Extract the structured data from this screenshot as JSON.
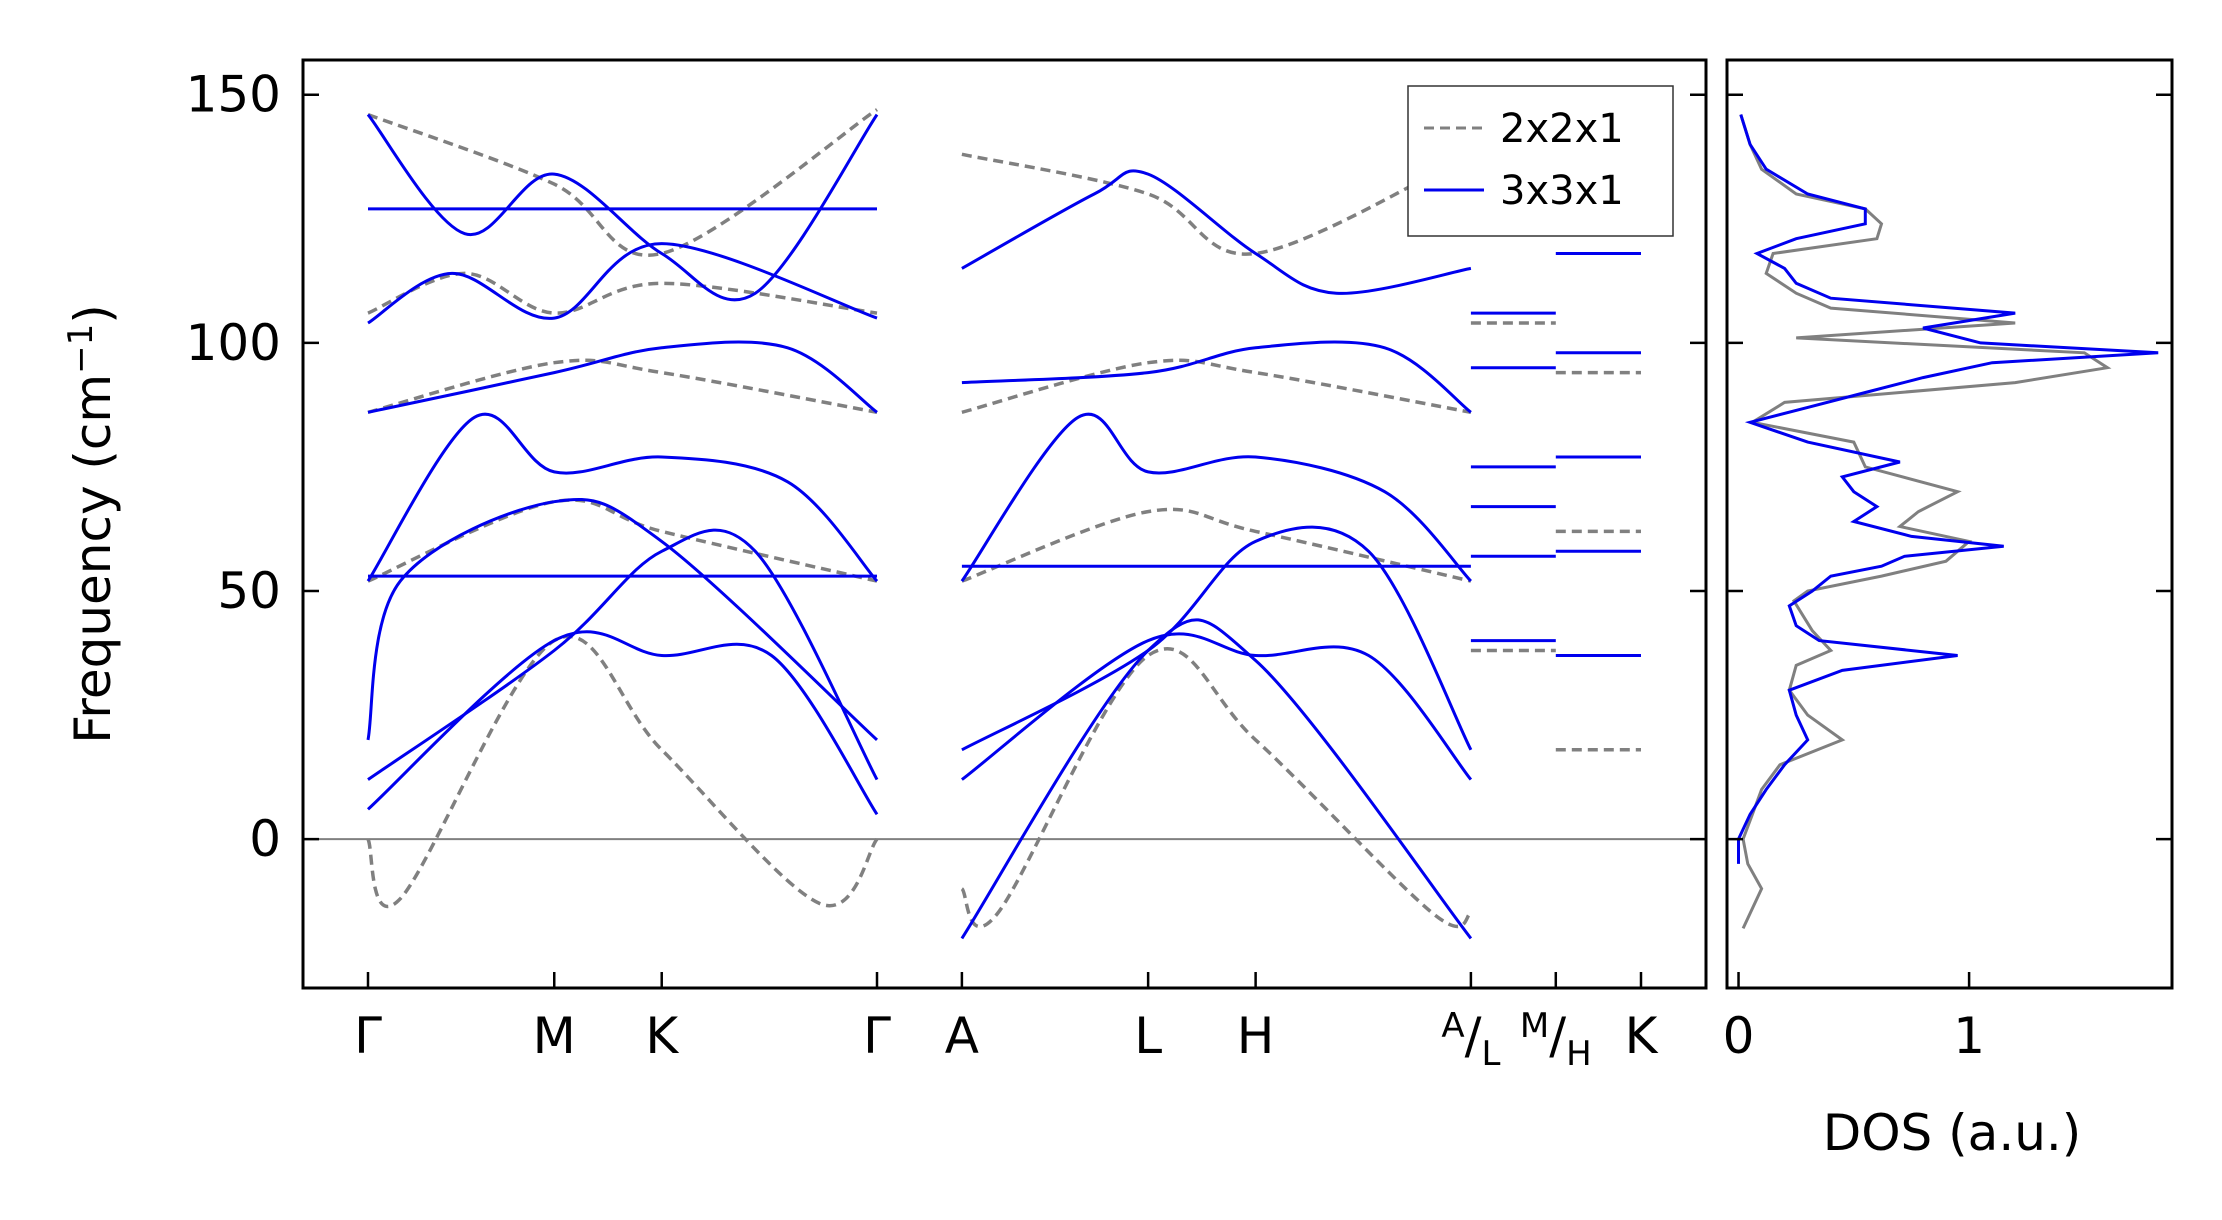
{
  "chart_data": [
    {
      "type": "line",
      "panel": "phonon-dispersion",
      "xlabel": "",
      "ylabel": "Frequency (cm",
      "ylabel_sup": "−1",
      "ylabel_tail": ")",
      "ylim": [
        -30,
        157
      ],
      "yticks": [
        0,
        50,
        100,
        150
      ],
      "zero_line": true,
      "colors": {
        "2x2x1": "#808080",
        "3x3x1": "#0000ee"
      },
      "kpath": [
        {
          "label": "Γ",
          "x": 0
        },
        {
          "label": "M",
          "x": 0.577
        },
        {
          "label": "K",
          "x": 0.91
        },
        {
          "label": "Γ",
          "x": 1.577
        },
        {
          "label": "A",
          "x": 1.84
        },
        {
          "label": "L",
          "x": 2.417
        },
        {
          "label": "H",
          "x": 2.75
        },
        {
          "label": "A/L",
          "x": 3.417,
          "main": "",
          "sup": "A",
          "sep": "/",
          "sub": "L"
        },
        {
          "label": "M/H",
          "x": 3.68,
          "main": "",
          "sup": "M",
          "sep": "/",
          "sub": "H"
        },
        {
          "label": "K",
          "x": 3.944
        }
      ],
      "legend": {
        "placement": "top-right",
        "entries": [
          "2x2x1",
          "3x3x1"
        ]
      },
      "series": [
        {
          "name": "2x2x1",
          "style": "dashed",
          "segment": "Γ-M-K-Γ",
          "x": [
            0,
            0.1,
            0.577,
            0.91,
            1.4,
            1.577
          ],
          "y": [
            0,
            -12,
            40,
            18,
            -13,
            0
          ]
        },
        {
          "name": "2x2x1",
          "style": "dashed",
          "segment": "Γ-M-K-Γ",
          "x": [
            0,
            0.577,
            0.91,
            1.577
          ],
          "y": [
            52,
            68,
            62,
            52
          ]
        },
        {
          "name": "2x2x1",
          "style": "dashed",
          "segment": "Γ-M-K-Γ",
          "x": [
            0,
            0.577,
            0.91,
            1.577
          ],
          "y": [
            86,
            96,
            94,
            86
          ]
        },
        {
          "name": "2x2x1",
          "style": "dashed",
          "segment": "Γ-M-K-Γ",
          "x": [
            0,
            0.3,
            0.577,
            0.91,
            1.577
          ],
          "y": [
            106,
            114,
            106,
            112,
            106
          ]
        },
        {
          "name": "2x2x1",
          "style": "dashed",
          "segment": "Γ-M-K-Γ",
          "x": [
            0,
            0.577,
            0.91,
            1.577
          ],
          "y": [
            146,
            132,
            118,
            147
          ]
        },
        {
          "name": "2x2x1",
          "style": "dashed",
          "segment": "A-L-H-A",
          "x": [
            1.84,
            1.95,
            2.417,
            2.75,
            3.3,
            3.417
          ],
          "y": [
            -10,
            -15,
            37,
            20,
            -15,
            -15
          ]
        },
        {
          "name": "2x2x1",
          "style": "dashed",
          "segment": "A-L-H-A",
          "x": [
            1.84,
            2.417,
            2.75,
            3.417
          ],
          "y": [
            52,
            66,
            62,
            52
          ]
        },
        {
          "name": "2x2x1",
          "style": "dashed",
          "segment": "A-L-H-A",
          "x": [
            1.84,
            2.417,
            2.75,
            3.417
          ],
          "y": [
            86,
            96,
            94,
            86
          ]
        },
        {
          "name": "2x2x1",
          "style": "dashed",
          "segment": "A-L-H-A",
          "x": [
            1.84,
            2.417,
            2.75,
            3.417
          ],
          "y": [
            138,
            130,
            118,
            138
          ]
        },
        {
          "name": "2x2x1",
          "style": "dashed",
          "segment": "M/H-K flat",
          "x": [
            3.68,
            3.944
          ],
          "y": [
            18,
            18
          ]
        },
        {
          "name": "2x2x1",
          "style": "dashed",
          "segment": "M/H-K flat",
          "x": [
            3.68,
            3.944
          ],
          "y": [
            62,
            62
          ]
        },
        {
          "name": "2x2x1",
          "style": "dashed",
          "segment": "M/H-K flat",
          "x": [
            3.68,
            3.944
          ],
          "y": [
            94,
            94
          ]
        },
        {
          "name": "2x2x1",
          "style": "dashed",
          "segment": "A/L flat",
          "x": [
            3.417,
            3.68
          ],
          "y": [
            38,
            38
          ]
        },
        {
          "name": "2x2x1",
          "style": "dashed",
          "segment": "A/L flat",
          "x": [
            3.417,
            3.68
          ],
          "y": [
            104,
            104
          ]
        },
        {
          "name": "3x3x1",
          "style": "solid",
          "segment": "Γ-M-K-Γ",
          "x": [
            0,
            0.577,
            0.91,
            1.25,
            1.577
          ],
          "y": [
            6,
            40,
            37,
            37,
            5
          ]
        },
        {
          "name": "3x3x1",
          "style": "solid",
          "segment": "Γ-M-K-Γ",
          "x": [
            0,
            0.577,
            0.91,
            1.2,
            1.577
          ],
          "y": [
            12,
            38,
            58,
            58,
            12
          ]
        },
        {
          "name": "3x3x1",
          "style": "solid",
          "segment": "Γ-M-K-Γ",
          "x": [
            0,
            0.1,
            0.577,
            0.91,
            1.577
          ],
          "y": [
            20,
            52,
            68,
            60,
            20
          ]
        },
        {
          "name": "3x3x1",
          "style": "solid",
          "segment": "Γ-M-K-Γ",
          "x": [
            0,
            0.577,
            1.577
          ],
          "y": [
            53,
            53,
            53
          ]
        },
        {
          "name": "3x3x1",
          "style": "solid",
          "segment": "Γ-M-K-Γ",
          "x": [
            0,
            0.33,
            0.577,
            0.91,
            1.3,
            1.577
          ],
          "y": [
            52,
            85,
            74,
            77,
            72,
            52
          ]
        },
        {
          "name": "3x3x1",
          "style": "solid",
          "segment": "Γ-M-K-Γ",
          "x": [
            0,
            0.577,
            0.91,
            1.3,
            1.577
          ],
          "y": [
            86,
            94,
            99,
            99,
            86
          ]
        },
        {
          "name": "3x3x1",
          "style": "solid",
          "segment": "Γ-M-K-Γ",
          "x": [
            0,
            0.26,
            0.577,
            0.91,
            1.577
          ],
          "y": [
            104,
            114,
            105,
            120,
            105
          ]
        },
        {
          "name": "3x3x1",
          "style": "solid",
          "segment": "Γ-M-K-Γ",
          "x": [
            0,
            0.3,
            0.577,
            0.91,
            1.2,
            1.577
          ],
          "y": [
            146,
            122,
            134,
            118,
            110,
            146
          ]
        },
        {
          "name": "3x3x1",
          "style": "solid",
          "segment": "Γ-M-K-Γ",
          "x": [
            0,
            1.577
          ],
          "y": [
            127,
            127
          ]
        },
        {
          "name": "3x3x1",
          "style": "solid",
          "segment": "A-L-H-A",
          "x": [
            1.84,
            2.417,
            2.75,
            3.1,
            3.417
          ],
          "y": [
            12,
            40,
            37,
            37,
            12
          ]
        },
        {
          "name": "3x3x1",
          "style": "solid",
          "segment": "A-L-H-A",
          "x": [
            1.84,
            2.417,
            2.75,
            3.1,
            3.417
          ],
          "y": [
            18,
            38,
            60,
            58,
            18
          ]
        },
        {
          "name": "3x3x1",
          "style": "solid",
          "segment": "A-L-H-A",
          "x": [
            1.84,
            2.417,
            3.417
          ],
          "y": [
            55,
            55,
            55
          ]
        },
        {
          "name": "3x3x1",
          "style": "solid",
          "segment": "A-L-H-A",
          "x": [
            1.84,
            2.2,
            2.417,
            2.75,
            3.15,
            3.417
          ],
          "y": [
            52,
            85,
            74,
            77,
            70,
            52
          ]
        },
        {
          "name": "3x3x1",
          "style": "solid",
          "segment": "A-L-H-A",
          "x": [
            1.84,
            2.417,
            2.75,
            3.15,
            3.417
          ],
          "y": [
            92,
            94,
            99,
            99,
            86
          ]
        },
        {
          "name": "3x3x1",
          "style": "solid",
          "segment": "A-L-H-A",
          "x": [
            1.84,
            2.417,
            2.75,
            3.417
          ],
          "y": [
            -20,
            38,
            36,
            -20
          ]
        },
        {
          "name": "3x3x1",
          "style": "solid",
          "segment": "A-L-H-A",
          "x": [
            1.84,
            2.25,
            2.417,
            2.75,
            3.0,
            3.417
          ],
          "y": [
            115,
            130,
            134,
            118,
            110,
            115
          ]
        },
        {
          "name": "3x3x1",
          "style": "solid",
          "segment": "A/L flat",
          "x": [
            3.417,
            3.68
          ],
          "y": [
            40,
            40
          ]
        },
        {
          "name": "3x3x1",
          "style": "solid",
          "segment": "A/L flat",
          "x": [
            3.417,
            3.68
          ],
          "y": [
            57,
            57
          ]
        },
        {
          "name": "3x3x1",
          "style": "solid",
          "segment": "A/L flat",
          "x": [
            3.417,
            3.68
          ],
          "y": [
            67,
            67
          ]
        },
        {
          "name": "3x3x1",
          "style": "solid",
          "segment": "A/L flat",
          "x": [
            3.417,
            3.68
          ],
          "y": [
            75,
            75
          ]
        },
        {
          "name": "3x3x1",
          "style": "solid",
          "segment": "A/L flat",
          "x": [
            3.417,
            3.68
          ],
          "y": [
            95,
            95
          ]
        },
        {
          "name": "3x3x1",
          "style": "solid",
          "segment": "A/L flat",
          "x": [
            3.417,
            3.68
          ],
          "y": [
            106,
            106
          ]
        },
        {
          "name": "3x3x1",
          "style": "solid",
          "segment": "M/H-K flat",
          "x": [
            3.68,
            3.944
          ],
          "y": [
            37,
            37
          ]
        },
        {
          "name": "3x3x1",
          "style": "solid",
          "segment": "M/H-K flat",
          "x": [
            3.68,
            3.944
          ],
          "y": [
            58,
            58
          ]
        },
        {
          "name": "3x3x1",
          "style": "solid",
          "segment": "M/H-K flat",
          "x": [
            3.68,
            3.944
          ],
          "y": [
            77,
            77
          ]
        },
        {
          "name": "3x3x1",
          "style": "solid",
          "segment": "M/H-K flat",
          "x": [
            3.68,
            3.944
          ],
          "y": [
            98,
            98
          ]
        },
        {
          "name": "3x3x1",
          "style": "solid",
          "segment": "M/H-K flat",
          "x": [
            3.68,
            3.944
          ],
          "y": [
            118,
            118
          ]
        }
      ]
    },
    {
      "type": "line",
      "panel": "dos",
      "xlabel": "DOS (a.u.)",
      "xlim": [
        -0.05,
        1.88
      ],
      "xticks": [
        0,
        1
      ],
      "ylim": [
        -30,
        157
      ],
      "series": [
        {
          "name": "2x2x1",
          "freq": [
            -18,
            -10,
            -5,
            0,
            5,
            10,
            15,
            20,
            25,
            30,
            35,
            38,
            42,
            45,
            48,
            50,
            53,
            56,
            60,
            63,
            66,
            70,
            75,
            80,
            84,
            88,
            92,
            95,
            98,
            101,
            104,
            107,
            110,
            114,
            118,
            121,
            124,
            127,
            130,
            135,
            140,
            146
          ],
          "dos": [
            0.02,
            0.1,
            0.04,
            0.02,
            0.06,
            0.1,
            0.18,
            0.45,
            0.3,
            0.22,
            0.25,
            0.4,
            0.32,
            0.28,
            0.24,
            0.3,
            0.62,
            0.9,
            1.0,
            0.7,
            0.78,
            0.95,
            0.55,
            0.5,
            0.06,
            0.2,
            1.2,
            1.6,
            1.5,
            0.25,
            1.2,
            0.4,
            0.25,
            0.12,
            0.15,
            0.6,
            0.62,
            0.55,
            0.25,
            0.1,
            0.05,
            0.01
          ]
        },
        {
          "name": "3x3x1",
          "freq": [
            -5,
            0,
            5,
            10,
            15,
            20,
            25,
            30,
            34,
            37,
            40,
            43,
            47,
            50,
            53,
            55,
            57,
            59,
            61,
            64,
            67,
            70,
            73,
            76,
            80,
            84,
            87,
            90,
            93,
            96,
            98,
            100,
            103,
            106,
            109,
            112,
            115,
            118,
            121,
            124,
            127,
            130,
            135,
            140,
            146
          ],
          "dos": [
            0.0,
            0.0,
            0.05,
            0.12,
            0.2,
            0.3,
            0.25,
            0.22,
            0.45,
            0.95,
            0.35,
            0.25,
            0.22,
            0.32,
            0.4,
            0.62,
            0.72,
            1.15,
            0.75,
            0.5,
            0.6,
            0.5,
            0.45,
            0.7,
            0.3,
            0.05,
            0.3,
            0.55,
            0.8,
            1.1,
            1.82,
            1.05,
            0.8,
            1.2,
            0.4,
            0.25,
            0.2,
            0.08,
            0.25,
            0.55,
            0.55,
            0.3,
            0.12,
            0.05,
            0.01
          ]
        }
      ]
    }
  ]
}
